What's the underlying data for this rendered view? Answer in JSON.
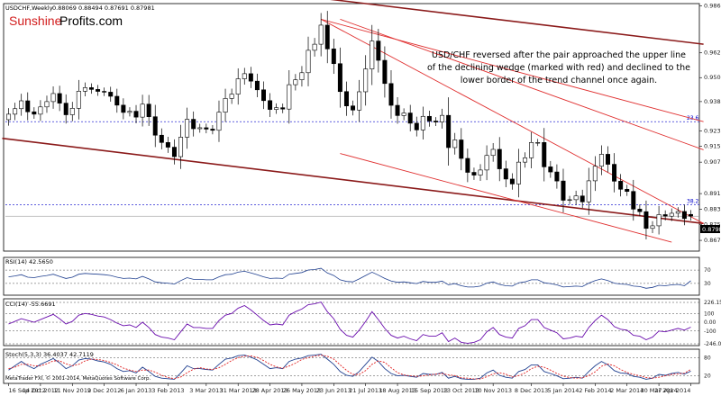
{
  "header": {
    "symbol": "USDCHF,Weekly",
    "ohlc": "0.88069 0.88494 0.87691 0.87981",
    "brand_part1": "Sunshine",
    "brand_part2": "Profits.com"
  },
  "annotation": "USD/CHF reversed after the pair approached the upper line of the declining wedge (marked with red) and declined to the lower border of the trend channel once again.",
  "annotation_lines": [
    "USD/CHF reversed after the pair approached the upper line",
    "of the declining wedge (marked with red) and declined to the",
    "lower border of the trend channel once again."
  ],
  "fib_labels": {
    "fib_23_6": "23.6",
    "fib_38_2": "38.2"
  },
  "footer": "MetaTrader FXI, © 2001-2014, MetaQuotes Software Corp.",
  "colors": {
    "bull": "#ffffff",
    "bear": "#000000",
    "channel": "#8b1a1a",
    "wedge": "#e03030",
    "fib": "#0000cc",
    "indicator": "#6a0dad",
    "stoch_main": "#1f3f8f",
    "stoch_signal": "#e02020"
  },
  "chart_data": [
    {
      "type": "candlestick",
      "title": "USDCHF,Weekly",
      "y_axis_ticks": [
        "0.98690",
        "0.96290",
        "0.95030",
        "0.93810",
        "0.92310",
        "0.91530",
        "0.90730",
        "0.89130",
        "0.88330",
        "0.87550",
        "0.86750"
      ],
      "ylim": [
        0.8625,
        0.9875
      ],
      "current_price": "0.87981",
      "x_axis_labels": [
        "16 Sep 2012",
        "14 Oct 2012",
        "11 Nov 2012",
        "9 Dec 2012",
        "6 Jan 2013",
        "3 Feb 2013",
        "3 Mar 2013",
        "31 Mar 2013",
        "28 Apr 2013",
        "26 May 2013",
        "23 Jun 2013",
        "21 Jul 2013",
        "18 Aug 2013",
        "15 Sep 2013",
        "13 Oct 2013",
        "10 Nov 2013",
        "8 Dec 2013",
        "5 Jan 2014",
        "2 Feb 2014",
        "2 Mar 2014",
        "30 Mar 2014",
        "27 Apr 2014"
      ],
      "fibonacci": [
        {
          "label": "23.6",
          "value": 0.9279
        },
        {
          "label": "38.2",
          "value": 0.8856
        }
      ],
      "close": [
        0.9317,
        0.9345,
        0.9385,
        0.9329,
        0.9317,
        0.9354,
        0.9381,
        0.9422,
        0.9373,
        0.9314,
        0.9347,
        0.9434,
        0.9452,
        0.9443,
        0.9433,
        0.9429,
        0.9408,
        0.9363,
        0.9326,
        0.9332,
        0.9302,
        0.9368,
        0.9304,
        0.921,
        0.9173,
        0.9149,
        0.9101,
        0.92,
        0.9291,
        0.9243,
        0.9248,
        0.9241,
        0.9235,
        0.9327,
        0.9397,
        0.9419,
        0.9497,
        0.9523,
        0.9485,
        0.9441,
        0.9386,
        0.9341,
        0.935,
        0.9343,
        0.9467,
        0.9492,
        0.9528,
        0.9642,
        0.9673,
        0.977,
        0.9649,
        0.9574,
        0.9432,
        0.9359,
        0.9338,
        0.9431,
        0.9547,
        0.9689,
        0.9591,
        0.9473,
        0.9362,
        0.931,
        0.9323,
        0.9271,
        0.9237,
        0.9306,
        0.9282,
        0.9277,
        0.9311,
        0.9147,
        0.9186,
        0.9092,
        0.9021,
        0.9007,
        0.9033,
        0.9107,
        0.9138,
        0.9039,
        0.8987,
        0.8962,
        0.9073,
        0.9095,
        0.9173,
        0.9173,
        0.9049,
        0.9023,
        0.8977,
        0.8879,
        0.8882,
        0.8901,
        0.8871,
        0.8978,
        0.9052,
        0.9113,
        0.9062,
        0.8976,
        0.8935,
        0.8924,
        0.8834,
        0.8821,
        0.8736,
        0.8749,
        0.8806,
        0.8798,
        0.8813,
        0.8822,
        0.8786,
        0.8798
      ],
      "open": [
        0.9289,
        0.9317,
        0.9345,
        0.9385,
        0.9329,
        0.9317,
        0.9354,
        0.9381,
        0.9422,
        0.9373,
        0.9314,
        0.9347,
        0.9434,
        0.9452,
        0.9443,
        0.9433,
        0.9429,
        0.9408,
        0.9363,
        0.9326,
        0.9332,
        0.9302,
        0.9368,
        0.9304,
        0.921,
        0.9173,
        0.9149,
        0.9101,
        0.92,
        0.9291,
        0.9243,
        0.9248,
        0.9241,
        0.9235,
        0.9327,
        0.9397,
        0.9419,
        0.9497,
        0.9523,
        0.9485,
        0.9441,
        0.9386,
        0.9341,
        0.935,
        0.9343,
        0.9467,
        0.9492,
        0.9528,
        0.9642,
        0.9673,
        0.977,
        0.9649,
        0.9574,
        0.9432,
        0.9359,
        0.9338,
        0.9431,
        0.9547,
        0.9689,
        0.9591,
        0.9473,
        0.9362,
        0.931,
        0.9323,
        0.9271,
        0.9237,
        0.9306,
        0.9282,
        0.9277,
        0.9311,
        0.9147,
        0.9186,
        0.9092,
        0.9021,
        0.9007,
        0.9033,
        0.9107,
        0.9138,
        0.9039,
        0.8987,
        0.8962,
        0.9073,
        0.9095,
        0.9173,
        0.9173,
        0.9049,
        0.9023,
        0.8977,
        0.8879,
        0.8882,
        0.8901,
        0.8871,
        0.8978,
        0.9052,
        0.9113,
        0.9062,
        0.8976,
        0.8935,
        0.8924,
        0.8834,
        0.8821,
        0.8736,
        0.8749,
        0.8806,
        0.8798,
        0.8813,
        0.8822,
        0.8807
      ]
    },
    {
      "type": "line",
      "title": "RSI(14) 42.5650",
      "ylim": [
        0,
        100
      ],
      "y_axis_ticks": [
        "70",
        "30"
      ],
      "values": [
        52,
        54,
        57,
        51,
        50,
        53,
        55,
        58,
        53,
        48,
        51,
        58,
        60,
        59,
        58,
        57,
        55,
        51,
        48,
        49,
        47,
        53,
        47,
        40,
        38,
        37,
        35,
        43,
        50,
        46,
        46,
        45,
        45,
        52,
        57,
        58,
        63,
        65,
        61,
        57,
        52,
        48,
        49,
        48,
        58,
        60,
        62,
        68,
        69,
        72,
        61,
        55,
        45,
        41,
        40,
        47,
        55,
        63,
        56,
        48,
        42,
        39,
        40,
        38,
        36,
        41,
        39,
        39,
        42,
        33,
        36,
        31,
        28,
        28,
        30,
        37,
        40,
        34,
        31,
        30,
        38,
        40,
        45,
        45,
        38,
        36,
        33,
        28,
        29,
        30,
        29,
        37,
        43,
        47,
        43,
        37,
        35,
        34,
        30,
        29,
        25,
        27,
        32,
        31,
        33,
        34,
        31,
        42.57
      ]
    },
    {
      "type": "line",
      "title": "CCI(14) -55.6691",
      "y_axis_ticks": [
        "226.1555",
        "100",
        "0.00",
        "-100",
        "-246.0045"
      ],
      "ylim": [
        -246.0045,
        226.1555
      ],
      "values": [
        -20,
        10,
        40,
        20,
        0,
        30,
        60,
        90,
        40,
        -20,
        10,
        80,
        100,
        90,
        70,
        60,
        30,
        -10,
        -40,
        -30,
        -60,
        0,
        -60,
        -140,
        -170,
        -180,
        -200,
        -110,
        -20,
        -60,
        -60,
        -70,
        -70,
        20,
        80,
        100,
        160,
        190,
        140,
        80,
        20,
        -30,
        -20,
        -30,
        80,
        120,
        150,
        200,
        210,
        230,
        120,
        40,
        -80,
        -150,
        -170,
        -90,
        10,
        120,
        30,
        -70,
        -150,
        -180,
        -160,
        -190,
        -210,
        -140,
        -160,
        -160,
        -120,
        -220,
        -180,
        -230,
        -240,
        -230,
        -200,
        -110,
        -60,
        -140,
        -170,
        -180,
        -70,
        -40,
        30,
        30,
        -60,
        -90,
        -120,
        -190,
        -180,
        -160,
        -170,
        -60,
        20,
        80,
        30,
        -50,
        -80,
        -90,
        -150,
        -160,
        -200,
        -170,
        -100,
        -110,
        -90,
        -70,
        -90,
        -55.67
      ]
    },
    {
      "type": "line",
      "title": "Stoch(5,3,3) 36.4037 42.7119",
      "ylim": [
        0,
        100
      ],
      "y_axis_ticks": [
        "80",
        "20"
      ],
      "series": [
        {
          "name": "36.4037",
          "values": [
            40,
            55,
            70,
            55,
            45,
            60,
            70,
            80,
            65,
            45,
            55,
            75,
            80,
            78,
            72,
            68,
            60,
            45,
            35,
            38,
            30,
            50,
            35,
            18,
            12,
            10,
            8,
            30,
            55,
            45,
            45,
            42,
            40,
            60,
            78,
            82,
            90,
            92,
            85,
            75,
            60,
            45,
            48,
            45,
            70,
            78,
            82,
            90,
            92,
            95,
            78,
            60,
            35,
            22,
            18,
            35,
            60,
            85,
            70,
            45,
            28,
            20,
            22,
            18,
            15,
            28,
            25,
            25,
            32,
            12,
            18,
            10,
            8,
            8,
            12,
            30,
            40,
            22,
            15,
            12,
            35,
            42,
            58,
            58,
            35,
            28,
            20,
            10,
            12,
            15,
            12,
            35,
            55,
            70,
            58,
            38,
            30,
            28,
            18,
            15,
            8,
            12,
            25,
            22,
            28,
            32,
            26,
            36.4
          ]
        },
        {
          "name": "42.7119",
          "values": [
            45,
            50,
            60,
            60,
            55,
            55,
            62,
            72,
            72,
            62,
            55,
            60,
            72,
            78,
            77,
            73,
            67,
            58,
            47,
            40,
            35,
            40,
            40,
            33,
            22,
            14,
            10,
            16,
            31,
            43,
            48,
            44,
            42,
            48,
            60,
            73,
            83,
            88,
            89,
            84,
            73,
            60,
            51,
            46,
            54,
            64,
            77,
            83,
            88,
            92,
            88,
            78,
            58,
            39,
            25,
            25,
            38,
            60,
            72,
            67,
            48,
            31,
            23,
            20,
            18,
            20,
            23,
            26,
            28,
            23,
            21,
            13,
            12,
            9,
            9,
            17,
            27,
            31,
            26,
            16,
            21,
            30,
            45,
            53,
            50,
            40,
            28,
            19,
            14,
            12,
            13,
            21,
            34,
            53,
            61,
            55,
            42,
            32,
            25,
            20,
            14,
            12,
            15,
            20,
            25,
            27,
            29,
            42.7
          ]
        }
      ]
    }
  ]
}
